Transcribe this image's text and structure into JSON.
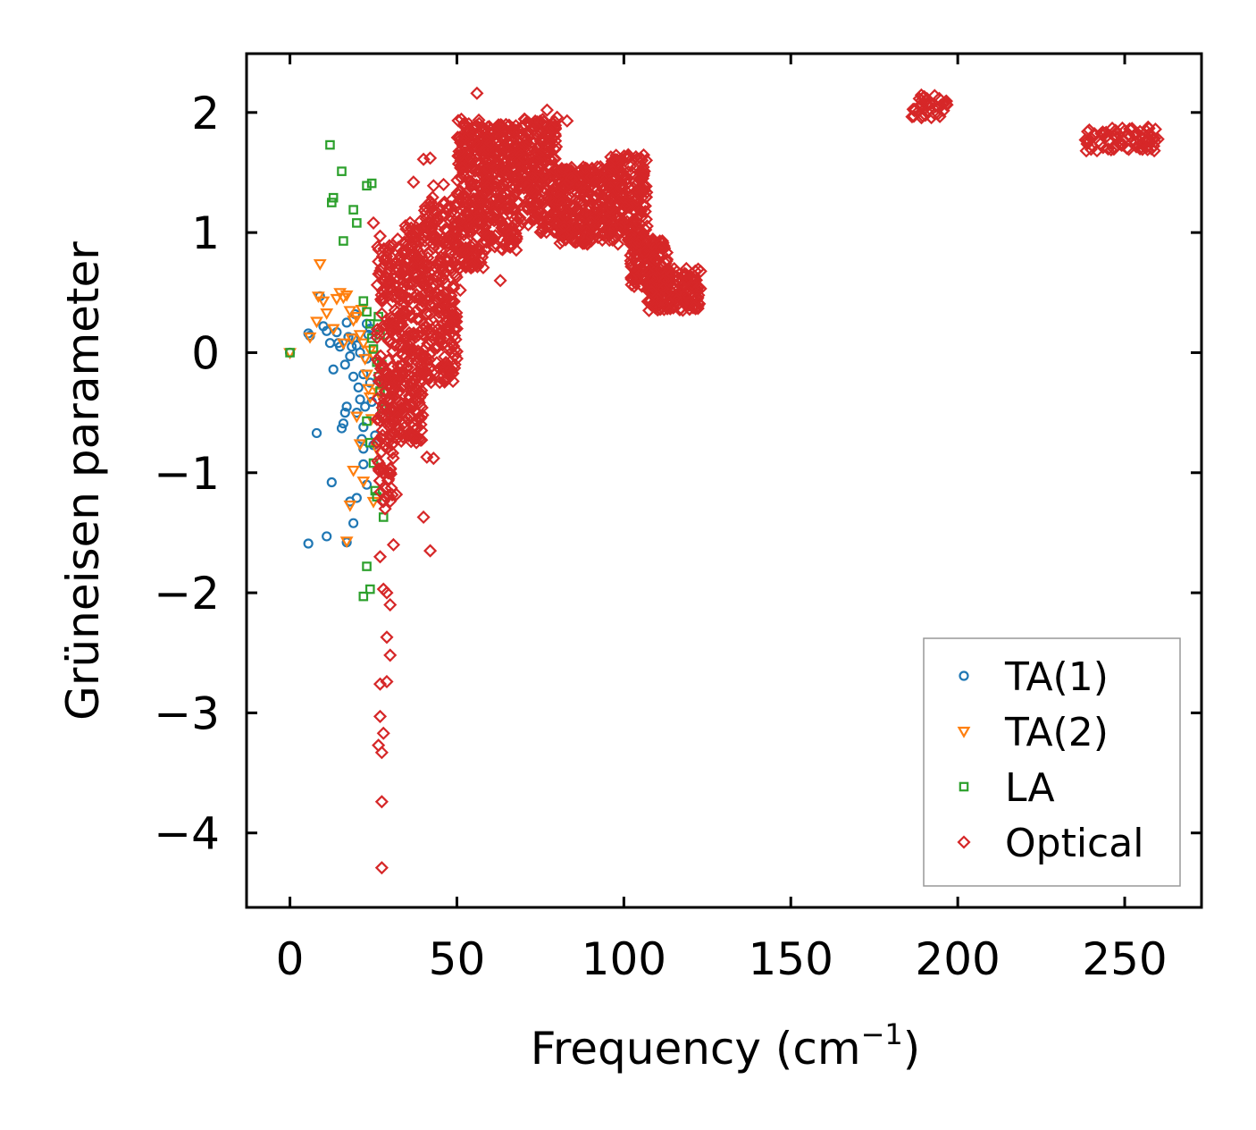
{
  "chart_data": {
    "type": "scatter",
    "xlabel": "Frequency (cm",
    "xlabel_sup": "−1",
    "xlabel_close": ")",
    "ylabel": "Grüneisen parameter",
    "xlim": [
      -13,
      273
    ],
    "ylim": [
      -4.62,
      2.49
    ],
    "xticks": [
      0,
      50,
      100,
      150,
      200,
      250
    ],
    "xtick_labels": [
      "0",
      "50",
      "100",
      "150",
      "200",
      "250"
    ],
    "yticks": [
      2,
      1,
      0,
      -1,
      -2,
      -3,
      -4
    ],
    "ytick_labels": [
      "2",
      "1",
      "0",
      "−1",
      "−2",
      "−3",
      "−4"
    ],
    "legend_position": "bottom-right",
    "series": [
      {
        "name": "TA(1)",
        "marker": "circle",
        "color": "#1f77b4",
        "points": [
          [
            0,
            0
          ],
          [
            5.5,
            0.16
          ],
          [
            6,
            0.14
          ],
          [
            9,
            0.47
          ],
          [
            10,
            0.22
          ],
          [
            11,
            0.18
          ],
          [
            12,
            0.08
          ],
          [
            13,
            -0.14
          ],
          [
            14,
            0.17
          ],
          [
            14.5,
            0.08
          ],
          [
            15,
            0.05
          ],
          [
            15.5,
            -0.63
          ],
          [
            16,
            -0.59
          ],
          [
            16.5,
            -0.5
          ],
          [
            17,
            0.25
          ],
          [
            17.5,
            0.13
          ],
          [
            18,
            -0.03
          ],
          [
            18.5,
            0.05
          ],
          [
            19,
            -0.2
          ],
          [
            19.5,
            0.32
          ],
          [
            20,
            0.06
          ],
          [
            20.5,
            -0.29
          ],
          [
            21,
            -0.39
          ],
          [
            21.5,
            -0.72
          ],
          [
            22,
            -0.93
          ],
          [
            22.5,
            -0.45
          ],
          [
            23,
            -0.05
          ],
          [
            23.5,
            0.15
          ],
          [
            24,
            0.2
          ],
          [
            24.5,
            -0.41
          ],
          [
            25,
            -0.77
          ],
          [
            25.5,
            -0.69
          ],
          [
            16.5,
            -0.1
          ],
          [
            17,
            -0.45
          ],
          [
            8,
            -0.67
          ],
          [
            12.5,
            -1.08
          ],
          [
            18,
            -1.24
          ],
          [
            19,
            -1.42
          ],
          [
            20,
            -1.21
          ],
          [
            5.5,
            -1.59
          ],
          [
            11,
            -1.53
          ],
          [
            17,
            -1.58
          ],
          [
            22,
            -0.8
          ],
          [
            23,
            -1.1
          ],
          [
            24,
            -0.25
          ],
          [
            21,
            0.0
          ],
          [
            22,
            -0.18
          ],
          [
            23,
            0.24
          ],
          [
            19,
            0.12
          ],
          [
            20,
            -0.5
          ],
          [
            22,
            -0.62
          ]
        ]
      },
      {
        "name": "TA(2)",
        "marker": "triangle",
        "color": "#ff7f0e",
        "points": [
          [
            0,
            0
          ],
          [
            6,
            0.13
          ],
          [
            8,
            0.26
          ],
          [
            8.5,
            0.47
          ],
          [
            9,
            0.74
          ],
          [
            10,
            0.43
          ],
          [
            11,
            0.33
          ],
          [
            13,
            0.2
          ],
          [
            14,
            0.45
          ],
          [
            15,
            0.5
          ],
          [
            16,
            0.46
          ],
          [
            17,
            0.48
          ],
          [
            18,
            0.35
          ],
          [
            19,
            0.27
          ],
          [
            20,
            0.3
          ],
          [
            21,
            0.15
          ],
          [
            21.5,
            0.36
          ],
          [
            22,
            0.08
          ],
          [
            22.5,
            -0.05
          ],
          [
            23,
            -0.18
          ],
          [
            23.5,
            -0.3
          ],
          [
            24,
            -0.37
          ],
          [
            24.5,
            -0.55
          ],
          [
            20,
            -0.53
          ],
          [
            21,
            -0.76
          ],
          [
            22,
            -1.07
          ],
          [
            18,
            -1.27
          ],
          [
            25,
            -1.24
          ],
          [
            26,
            -0.8
          ],
          [
            26.5,
            -0.33
          ],
          [
            25,
            -0.02
          ],
          [
            24,
            0.02
          ],
          [
            17,
            -1.57
          ],
          [
            19,
            -0.98
          ],
          [
            16,
            0.08
          ],
          [
            18.5,
            0.12
          ]
        ]
      },
      {
        "name": "LA",
        "marker": "square",
        "color": "#2ca02c",
        "points": [
          [
            0,
            0
          ],
          [
            12,
            1.73
          ],
          [
            12.5,
            1.25
          ],
          [
            13,
            1.29
          ],
          [
            15.5,
            1.51
          ],
          [
            16,
            0.93
          ],
          [
            19,
            1.19
          ],
          [
            20,
            1.08
          ],
          [
            23,
            1.39
          ],
          [
            24.5,
            1.41
          ],
          [
            22,
            0.43
          ],
          [
            23,
            0.34
          ],
          [
            24,
            0.24
          ],
          [
            24.5,
            0.12
          ],
          [
            25,
            0.03
          ],
          [
            26,
            -0.08
          ],
          [
            26.5,
            -0.2
          ],
          [
            27,
            -0.32
          ],
          [
            27.5,
            -0.47
          ],
          [
            28,
            -0.53
          ],
          [
            23,
            -0.57
          ],
          [
            24,
            -0.75
          ],
          [
            25,
            -0.92
          ],
          [
            25.5,
            -1.15
          ],
          [
            26,
            -1.2
          ],
          [
            28,
            -1.37
          ],
          [
            23,
            -1.78
          ],
          [
            24,
            -1.97
          ],
          [
            22,
            -2.03
          ],
          [
            26.5,
            0.3
          ],
          [
            27,
            0.15
          ],
          [
            27.5,
            -0.1
          ],
          [
            28,
            -0.25
          ]
        ]
      },
      {
        "name": "Optical",
        "marker": "diamond",
        "color": "#d62728",
        "outliers": [
          [
            56,
            2.16
          ],
          [
            77,
            2.02
          ],
          [
            80,
            1.96
          ],
          [
            83,
            1.93
          ],
          [
            42,
            1.62
          ],
          [
            40,
            1.61
          ],
          [
            37,
            1.42
          ],
          [
            43,
            1.39
          ],
          [
            46,
            1.4
          ],
          [
            25,
            1.08
          ],
          [
            27,
            0.97
          ],
          [
            63,
            0.6
          ],
          [
            50,
            0.2
          ],
          [
            50,
            -0.05
          ],
          [
            41,
            -0.87
          ],
          [
            43,
            -0.88
          ],
          [
            40,
            -1.37
          ],
          [
            42,
            -1.65
          ],
          [
            27,
            -1.7
          ],
          [
            28,
            -1.97
          ],
          [
            29,
            -2.37
          ],
          [
            30,
            -2.52
          ],
          [
            27,
            -2.76
          ],
          [
            29,
            -2.74
          ],
          [
            27,
            -3.03
          ],
          [
            26.5,
            -3.27
          ],
          [
            27.5,
            -3.33
          ],
          [
            28,
            -3.17
          ],
          [
            27.5,
            -3.74
          ],
          [
            27.5,
            -4.29
          ],
          [
            29,
            -2.0
          ],
          [
            30,
            -2.1
          ],
          [
            31,
            -1.6
          ],
          [
            28.5,
            -1.3
          ],
          [
            29.5,
            -1.19
          ],
          [
            30,
            -1.0
          ],
          [
            26,
            -0.75
          ],
          [
            28,
            -0.55
          ],
          [
            38,
            0.28
          ],
          [
            40,
            0.15
          ],
          [
            45,
            0.12
          ],
          [
            51,
            0.52
          ]
        ],
        "clusters": [
          {
            "x": [
              26,
              32
            ],
            "y": [
              -1.25,
              0.9
            ],
            "n": 180
          },
          {
            "x": [
              32,
              40
            ],
            "y": [
              -0.75,
              1.1
            ],
            "n": 260
          },
          {
            "x": [
              40,
              50
            ],
            "y": [
              -0.25,
              1.3
            ],
            "n": 280
          },
          {
            "x": [
              50,
              58
            ],
            "y": [
              0.7,
              1.95
            ],
            "n": 220
          },
          {
            "x": [
              58,
              68
            ],
            "y": [
              0.85,
              1.9
            ],
            "n": 260
          },
          {
            "x": [
              68,
              80
            ],
            "y": [
              1.0,
              1.95
            ],
            "n": 260
          },
          {
            "x": [
              80,
              95
            ],
            "y": [
              0.9,
              1.55
            ],
            "n": 260
          },
          {
            "x": [
              95,
              107
            ],
            "y": [
              0.9,
              1.65
            ],
            "n": 200
          },
          {
            "x": [
              102,
              113
            ],
            "y": [
              0.55,
              0.95
            ],
            "n": 120
          },
          {
            "x": [
              107,
              123
            ],
            "y": [
              0.35,
              0.7
            ],
            "n": 180
          },
          {
            "x": [
              186,
              197
            ],
            "y": [
              1.95,
              2.15
            ],
            "n": 40
          },
          {
            "x": [
              238,
              260
            ],
            "y": [
              1.68,
              1.88
            ],
            "n": 80
          }
        ]
      }
    ]
  }
}
